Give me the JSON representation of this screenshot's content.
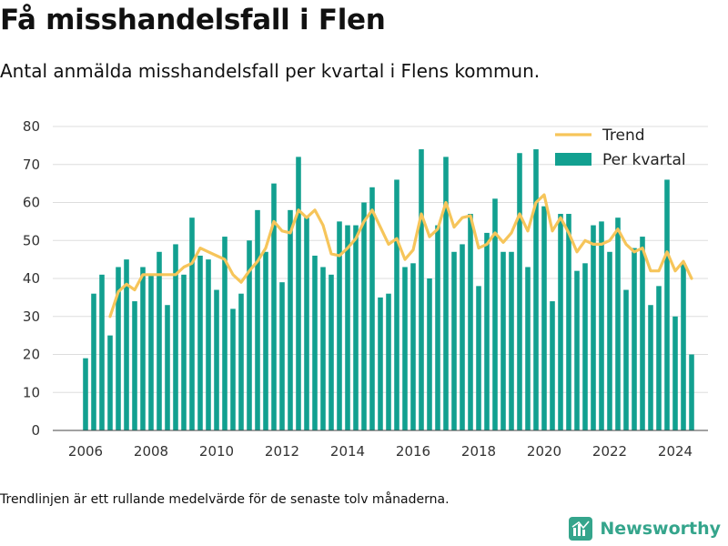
{
  "header": {
    "title": "Få misshandelsfall i Flen",
    "subtitle": "Antal anmälda misshandelsfall per kvartal i Flens kommun."
  },
  "footer": {
    "note": "Trendlinjen är ett rullande medelvärde för de senaste tolv månaderna.",
    "brand": "Newsworthy"
  },
  "colors": {
    "bar": "#12a090",
    "trend": "#f6c55a",
    "grid": "#dddddd",
    "brand": "#35a58c"
  },
  "chart_data": {
    "type": "bar",
    "x_start": "2006 Q1",
    "xticks": [
      2006,
      2008,
      2010,
      2012,
      2014,
      2016,
      2018,
      2020,
      2022,
      2024
    ],
    "xlim": [
      2005,
      2025
    ],
    "ylim": [
      0,
      80
    ],
    "yticks": [
      0,
      10,
      20,
      30,
      40,
      50,
      60,
      70,
      80
    ],
    "grid": true,
    "legend_position": "top-right",
    "series": [
      {
        "name": "Per kvartal",
        "type": "bar",
        "values": [
          19,
          36,
          41,
          25,
          43,
          45,
          34,
          43,
          41,
          47,
          33,
          49,
          41,
          56,
          46,
          45,
          37,
          51,
          32,
          36,
          50,
          58,
          47,
          65,
          39,
          58,
          72,
          56,
          46,
          43,
          41,
          55,
          54,
          54,
          60,
          64,
          35,
          36,
          66,
          43,
          44,
          74,
          40,
          54,
          72,
          47,
          49,
          57,
          38,
          52,
          61,
          47,
          47,
          73,
          43,
          74,
          59,
          34,
          57,
          57,
          42,
          44,
          54,
          55,
          47,
          56,
          37,
          48,
          51,
          33,
          38,
          66,
          30,
          44,
          20
        ]
      },
      {
        "name": "Trend",
        "type": "line",
        "values": [
          null,
          null,
          null,
          30,
          36.5,
          38.5,
          37,
          41,
          41,
          41,
          41,
          41,
          43,
          44,
          48,
          47,
          46,
          45,
          41,
          39,
          42,
          44.5,
          48,
          55,
          52.5,
          52,
          58,
          56,
          58,
          54,
          46.5,
          46,
          48,
          50.5,
          55,
          58,
          53.5,
          49,
          50.5,
          45,
          47.5,
          57,
          51,
          53,
          60,
          53.5,
          56,
          56.5,
          48,
          49,
          52,
          49.5,
          52,
          57,
          52.5,
          60,
          62,
          52.5,
          56,
          52,
          47,
          50,
          49,
          49,
          50,
          53,
          49,
          47,
          48,
          42,
          42,
          47,
          42,
          44.5,
          40
        ]
      }
    ]
  }
}
